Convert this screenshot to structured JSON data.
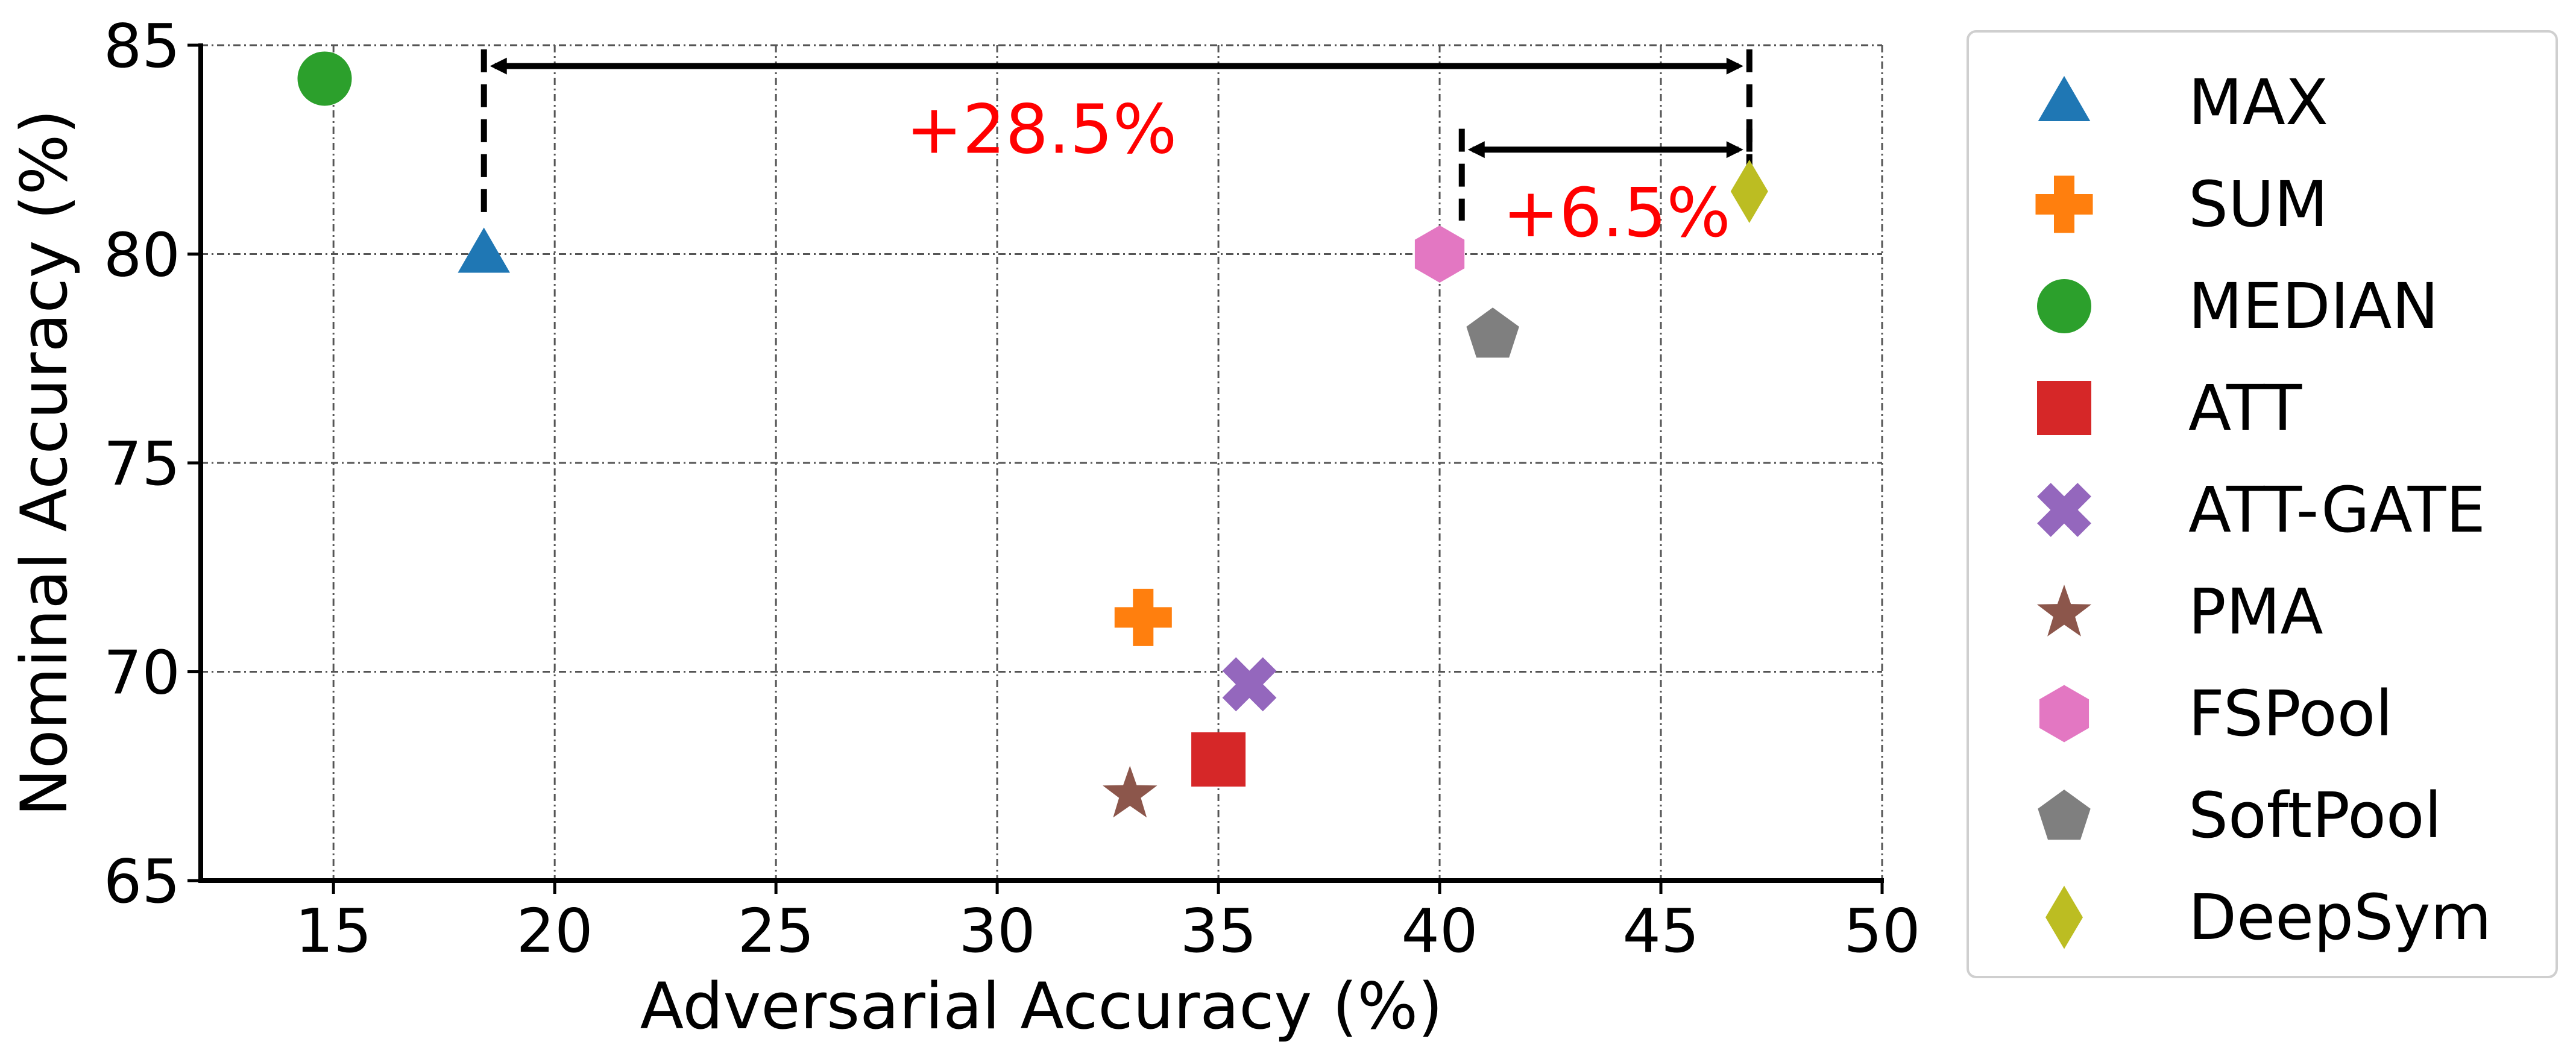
{
  "chart_data": {
    "type": "scatter",
    "title": "",
    "xlabel": "Adversarial Accuracy (%)",
    "ylabel": "Nominal Accuracy (%)",
    "xlim": [
      12,
      50
    ],
    "ylim": [
      65,
      85
    ],
    "xticks": [
      15,
      20,
      25,
      30,
      35,
      40,
      45,
      50
    ],
    "yticks": [
      65,
      70,
      75,
      80,
      85
    ],
    "grid": true,
    "legend_position": "outside-right",
    "series": [
      {
        "name": "MAX",
        "marker": "triangle-icon",
        "color": "#1f77b4",
        "x": 18.4,
        "y": 80.0
      },
      {
        "name": "SUM",
        "marker": "plus-icon",
        "color": "#ff7f0e",
        "x": 33.3,
        "y": 71.3
      },
      {
        "name": "MEDIAN",
        "marker": "circle-icon",
        "color": "#2ca02c",
        "x": 14.8,
        "y": 84.2
      },
      {
        "name": "ATT",
        "marker": "square-icon",
        "color": "#d62728",
        "x": 35.0,
        "y": 67.9
      },
      {
        "name": "ATT-GATE",
        "marker": "x-icon",
        "color": "#9467bd",
        "x": 35.7,
        "y": 69.7
      },
      {
        "name": "PMA",
        "marker": "star-icon",
        "color": "#8c564b",
        "x": 33.0,
        "y": 67.1
      },
      {
        "name": "FSPool",
        "marker": "hexagon-icon",
        "color": "#e377c2",
        "x": 40.0,
        "y": 80.0
      },
      {
        "name": "SoftPool",
        "marker": "pentagon-icon",
        "color": "#7f7f7f",
        "x": 41.2,
        "y": 78.1
      },
      {
        "name": "DeepSym",
        "marker": "diamond-icon",
        "color": "#bcbd22",
        "x": 47.0,
        "y": 81.5
      }
    ],
    "annotations": [
      {
        "text": "+28.5%",
        "color": "#ff0000",
        "x": 31.0,
        "y": 83.0,
        "from_x": 18.4,
        "to_x": 47.0,
        "arrow_y": 84.5,
        "drop_from_y": 84.9,
        "from_drop_to_y": 81.0,
        "to_drop_to_y": 82.0
      },
      {
        "text": "+6.5%",
        "color": "#ff0000",
        "x": 44.0,
        "y": 81.0,
        "from_x": 40.5,
        "to_x": 47.0,
        "arrow_y": 82.5,
        "drop_from_y": 83.0,
        "from_drop_to_y": 80.8,
        "to_drop_to_y": 82.0
      }
    ]
  }
}
